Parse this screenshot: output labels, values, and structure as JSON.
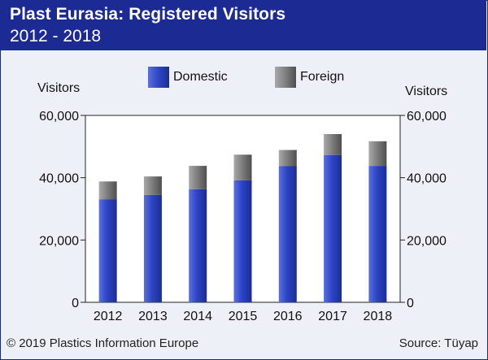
{
  "header": {
    "title": "Plast Eurasia: Registered Visitors",
    "subtitle": "2012 - 2018"
  },
  "footer": {
    "copyright": "© 2019 Plastics Information Europe",
    "source": "Source: Tüyap"
  },
  "colors": {
    "header_bg": "#1c2a94",
    "domestic": "#2f46c2",
    "foreign": "#7f7f7f",
    "background": "#eef0f7"
  },
  "chart_data": {
    "type": "bar",
    "stacked": true,
    "categories": [
      "2012",
      "2013",
      "2014",
      "2015",
      "2016",
      "2017",
      "2018"
    ],
    "series": [
      {
        "name": "Domestic",
        "values": [
          33000,
          34500,
          36300,
          39200,
          43700,
          47300,
          43800
        ]
      },
      {
        "name": "Foreign",
        "values": [
          5800,
          5900,
          7500,
          8200,
          5200,
          6700,
          7900
        ]
      }
    ],
    "ylabel_left": "Visitors",
    "ylabel_right": "Visitors",
    "ylim": [
      0,
      60000
    ],
    "yticks": [
      0,
      20000,
      40000,
      60000
    ],
    "ytick_labels": [
      "0",
      "20,000",
      "40,000",
      "60,000"
    ],
    "legend_position": "top",
    "grid": false
  }
}
